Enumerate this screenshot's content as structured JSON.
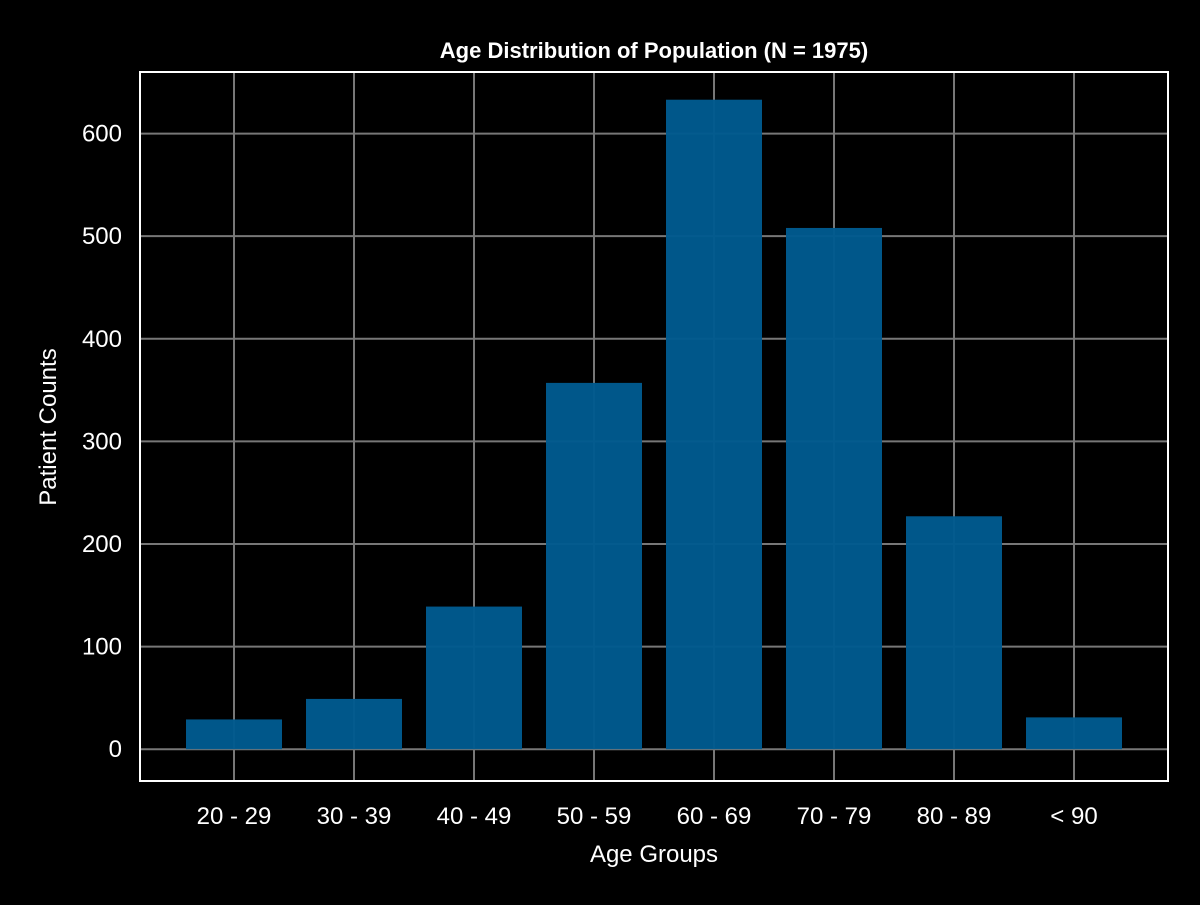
{
  "chart_data": {
    "type": "bar",
    "title": "Age Distribution of Population (N = 1975)",
    "xlabel": "Age Groups",
    "ylabel": "Patient Counts",
    "categories": [
      "20 - 29",
      "30 - 39",
      "40 - 49",
      "50 - 59",
      "60 - 69",
      "70 - 79",
      "80 - 89",
      "< 90"
    ],
    "values": [
      29,
      49,
      139,
      357,
      633,
      508,
      227,
      31
    ],
    "ylim": [
      -31,
      660
    ],
    "yticks": [
      0,
      100,
      200,
      300,
      400,
      500,
      600
    ],
    "grid": true,
    "colors": {
      "background": "#000000",
      "bar": "#005a8e",
      "grid": "#777777",
      "axes": "#ffffff",
      "text": "#ffffff"
    }
  }
}
